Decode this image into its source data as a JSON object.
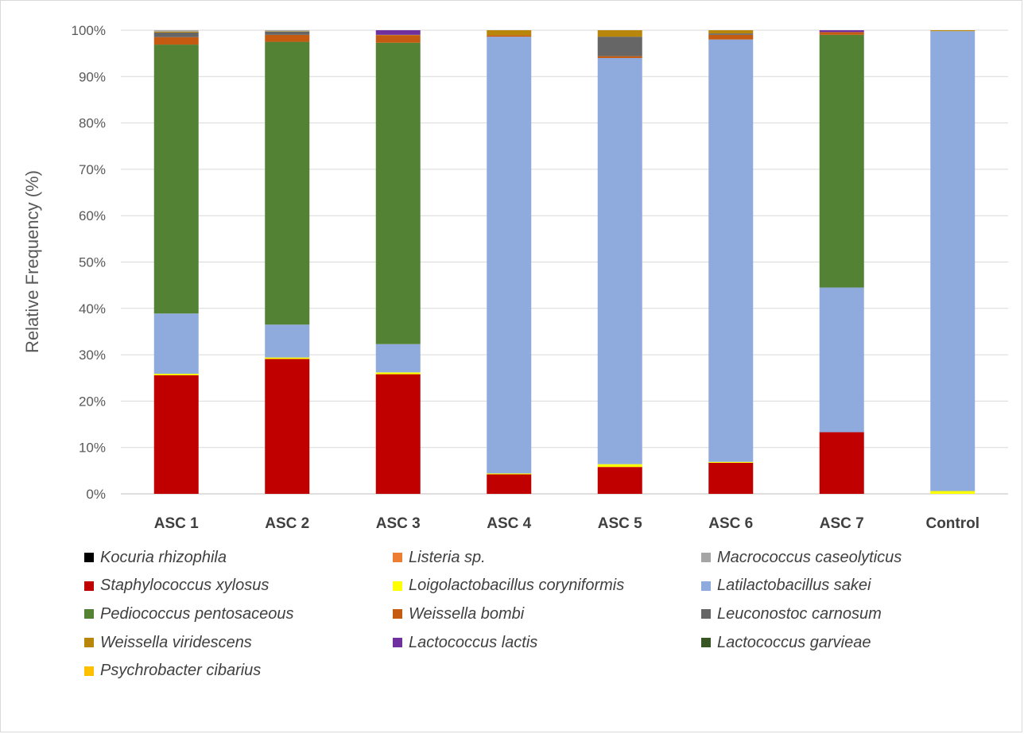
{
  "chart_data": {
    "type": "stacked-bar-100",
    "ylabel": "Relative Frequency (%)",
    "xlabel": "",
    "ylim": [
      0,
      100
    ],
    "yticks": [
      "0%",
      "10%",
      "20%",
      "30%",
      "40%",
      "50%",
      "60%",
      "70%",
      "80%",
      "90%",
      "100%"
    ],
    "grid": true,
    "legend_position": "bottom",
    "categories": [
      "ASC 1",
      "ASC 2",
      "ASC 3",
      "ASC 4",
      "ASC 5",
      "ASC 6",
      "ASC 7",
      "Control"
    ],
    "series": [
      {
        "name": "Kocuria rhizophila",
        "color": "#000000",
        "values": [
          0,
          0,
          0,
          0,
          0,
          0,
          0,
          0
        ]
      },
      {
        "name": "Listeria sp.",
        "color": "#ed7d31",
        "values": [
          0,
          0,
          0,
          0,
          0,
          0,
          0,
          0
        ]
      },
      {
        "name": "Staphylococcus xylosus",
        "color": "#c00000",
        "values": [
          25.6,
          29.1,
          25.8,
          4.2,
          5.8,
          6.7,
          13.3,
          0
        ]
      },
      {
        "name": "Loigolactobacillus coryniformis",
        "color": "#ffff00",
        "values": [
          0.3,
          0.3,
          0.4,
          0.2,
          0.6,
          0.2,
          0,
          0.6
        ]
      },
      {
        "name": "Latilactobacillus sakei",
        "color": "#8faadc",
        "values": [
          13.0,
          7.1,
          6.1,
          94.2,
          87.6,
          91.1,
          31.2,
          99.2
        ]
      },
      {
        "name": "Pediococcus pentosaceous",
        "color": "#548235",
        "values": [
          58.0,
          61.0,
          65.0,
          0,
          0,
          0,
          54.5,
          0
        ]
      },
      {
        "name": "Weissella bombi",
        "color": "#c55a11",
        "values": [
          1.6,
          1.5,
          1.6,
          0.3,
          0.4,
          1.0,
          0.6,
          0
        ]
      },
      {
        "name": "Leuconostoc carnosum",
        "color": "#666666",
        "values": [
          1.0,
          0.7,
          0,
          0,
          4.2,
          0.3,
          0,
          0
        ]
      },
      {
        "name": "Weissella viridescens",
        "color": "#b8860b",
        "values": [
          0.2,
          0.1,
          0.1,
          1.1,
          1.4,
          0.7,
          0,
          0.2
        ]
      },
      {
        "name": "Lactococcus lactis",
        "color": "#7030a0",
        "values": [
          0,
          0,
          1.0,
          0,
          0,
          0,
          0.4,
          0
        ]
      },
      {
        "name": "Macrococcus caseolyticus",
        "color": "#a5a5a5",
        "values": [
          0.3,
          0.2,
          0,
          0,
          0,
          0,
          0,
          0
        ]
      },
      {
        "name": "Lactococcus garvieae",
        "color": "#375623",
        "values": [
          0,
          0,
          0,
          0,
          0,
          0,
          0,
          0
        ]
      },
      {
        "name": "Psychrobacter cibarius",
        "color": "#ffc000",
        "values": [
          0,
          0,
          0,
          0,
          0,
          0,
          0,
          0
        ]
      }
    ],
    "legend_order": [
      "Kocuria rhizophila",
      "Listeria sp.",
      "Macrococcus caseolyticus",
      "Staphylococcus xylosus",
      "Loigolactobacillus coryniformis",
      "Latilactobacillus sakei",
      "Pediococcus pentosaceous",
      "Weissella bombi",
      "Leuconostoc carnosum",
      "Weissella viridescens",
      "Lactococcus lactis",
      "Lactococcus garvieae",
      "Psychrobacter cibarius"
    ]
  }
}
